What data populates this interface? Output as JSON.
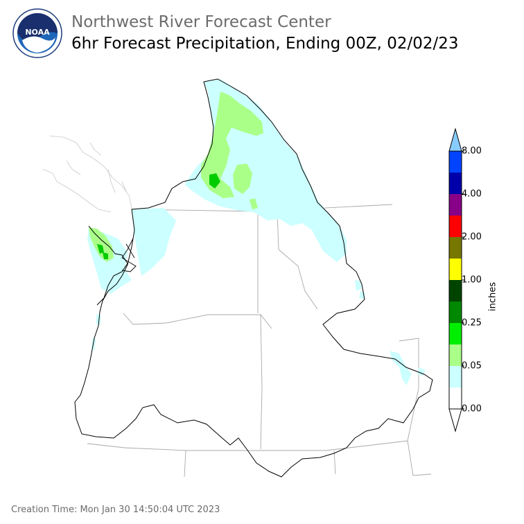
{
  "header": {
    "logo_text": "NOAA",
    "title": "Northwest River Forecast Center",
    "subtitle": "6hr Forecast Precipitation, Ending 00Z, 02/02/23"
  },
  "colorbar": {
    "unit": "inches",
    "tick_labels": [
      "0.00",
      "0.05",
      "0.25",
      "1.00",
      "2.00",
      "4.00",
      "8.00"
    ],
    "colors": [
      "#ffffff",
      "#ccffff",
      "#aaff88",
      "#00ee00",
      "#008800",
      "#004400",
      "#ffff00",
      "#777700",
      "#ff0000",
      "#880088",
      "#0000aa",
      "#0044ff",
      "#88ccff"
    ]
  },
  "map_colors": {
    "light_cyan": "#ccffff",
    "light_green": "#aaff88",
    "green": "#00cc00"
  },
  "footer": {
    "creation_time": "Creation Time: Mon Jan 30 14:50:04 UTC 2023"
  }
}
